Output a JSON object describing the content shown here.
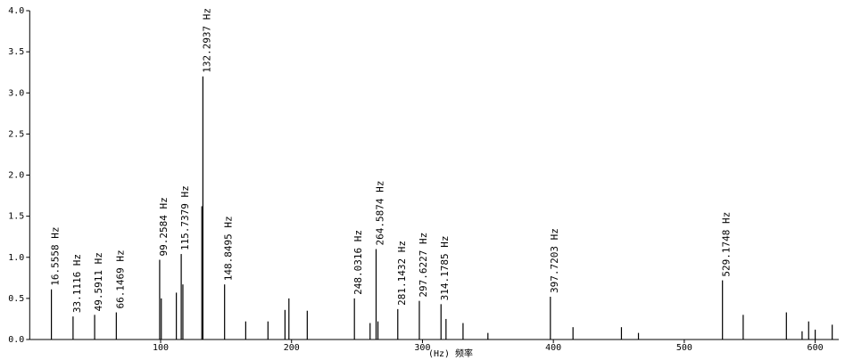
{
  "chart_data": {
    "type": "spectrum",
    "x_label": "(Hz) 频率",
    "xlim": [
      0,
      618
    ],
    "ylim": [
      0,
      4
    ],
    "xticks": [
      100,
      200,
      300,
      400,
      500,
      600
    ],
    "yticks": [
      {
        "value": 0,
        "label": "0.0"
      },
      {
        "value": 0.5,
        "label": "0.5"
      },
      {
        "value": 1,
        "label": "1.0"
      },
      {
        "value": 1.5,
        "label": "1.5"
      },
      {
        "value": 2,
        "label": "2.0"
      },
      {
        "value": 2.5,
        "label": "2.5"
      },
      {
        "value": 3,
        "label": "3.0"
      },
      {
        "value": 3.5,
        "label": "3.5"
      },
      {
        "value": 4,
        "label": "4.0"
      }
    ],
    "color": "#000000",
    "x": [
      16.5558,
      33.1116,
      49.5911,
      66.1469,
      99.2584,
      100.5,
      112,
      115.7379,
      117,
      131.5,
      132.2937,
      148.8495,
      165,
      182,
      195,
      198,
      212,
      248.0316,
      260,
      264.5874,
      266,
      281.1432,
      297.6227,
      314.1785,
      318,
      331,
      350,
      397.7203,
      415,
      452,
      465,
      529.1748,
      545,
      578,
      590,
      595,
      600,
      613
    ],
    "values": [
      0.61,
      0.28,
      0.3,
      0.33,
      0.97,
      0.5,
      0.57,
      1.04,
      0.67,
      1.62,
      3.2,
      0.67,
      0.22,
      0.22,
      0.36,
      0.5,
      0.35,
      0.5,
      0.2,
      1.1,
      0.22,
      0.37,
      0.47,
      0.43,
      0.25,
      0.2,
      0.08,
      0.52,
      0.15,
      0.15,
      0.08,
      0.72,
      0.3,
      0.33,
      0.1,
      0.22,
      0.12,
      0.18
    ],
    "annotations": [
      {
        "value": 16.5558,
        "label": "16.5558 Hz"
      },
      {
        "value": 33.1116,
        "label": "33.1116 Hz"
      },
      {
        "value": 49.5911,
        "label": "49.5911 Hz"
      },
      {
        "value": 66.1469,
        "label": "66.1469 Hz"
      },
      {
        "value": 99.2584,
        "label": "99.2584 Hz"
      },
      {
        "value": 115.7379,
        "label": "115.7379 Hz"
      },
      {
        "value": 132.2937,
        "label": "132.2937 Hz"
      },
      {
        "value": 148.8495,
        "label": "148.8495 Hz"
      },
      {
        "value": 248.0316,
        "label": "248.0316 Hz"
      },
      {
        "value": 264.5874,
        "label": "264.5874 Hz"
      },
      {
        "value": 281.1432,
        "label": "281.1432 Hz"
      },
      {
        "value": 297.6227,
        "label": "297.6227 Hz"
      },
      {
        "value": 314.1785,
        "label": "314.1785 Hz"
      },
      {
        "value": 397.7203,
        "label": "397.7203 Hz"
      },
      {
        "value": 529.1748,
        "label": "529.1748 Hz"
      }
    ]
  }
}
